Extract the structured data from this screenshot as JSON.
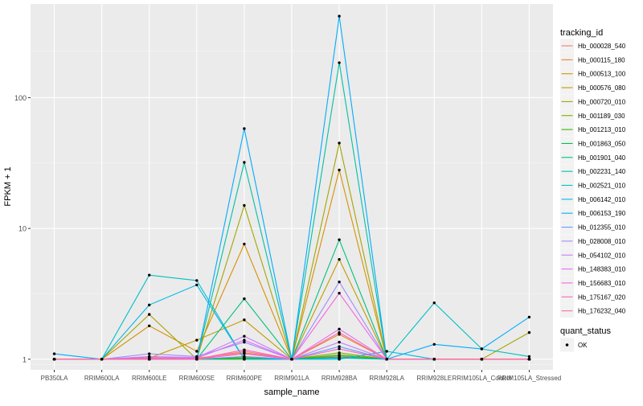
{
  "chart_data": {
    "type": "line",
    "xlabel": "sample_name",
    "ylabel": "FPKM + 1",
    "y_scale": "log10",
    "ylim": [
      0.83,
      520
    ],
    "y_ticks": [
      1,
      10,
      100
    ],
    "y_tick_labels": [
      "1",
      "10",
      "100"
    ],
    "grid": true,
    "categories": [
      "PB350LA",
      "RRIM600LA",
      "RRIM600LE",
      "RRIM600SE",
      "RRIM600PE",
      "RRIM901LA",
      "RRIM928BA",
      "RRIM928LA",
      "RRIM928LE",
      "RRIM105LA_Control",
      "RRIM105LA_Stressed"
    ],
    "legend": {
      "position": "right",
      "color_title": "tracking_id",
      "shape_title": "quant_status",
      "shape_entries": [
        "OK"
      ]
    },
    "series": [
      {
        "name": "Hb_000028_540",
        "color": "#F8766D",
        "values": [
          1.0,
          1.0,
          1.01,
          1.0,
          1.02,
          1.0,
          1.06,
          1.0,
          1.0,
          1.0,
          1.0
        ]
      },
      {
        "name": "Hb_000115_180",
        "color": "#EA8331",
        "values": [
          1.0,
          1.0,
          1.03,
          1.02,
          1.12,
          1.0,
          1.55,
          1.0,
          1.0,
          1.0,
          1.0
        ]
      },
      {
        "name": "Hb_000513_100",
        "color": "#D89000",
        "values": [
          1.0,
          1.0,
          1.8,
          1.15,
          7.6,
          1.0,
          28.0,
          1.0,
          1.0,
          1.0,
          1.0
        ]
      },
      {
        "name": "Hb_000576_080",
        "color": "#C09B00",
        "values": [
          1.0,
          1.0,
          1.02,
          1.4,
          2.0,
          1.0,
          5.8,
          1.0,
          1.0,
          1.0,
          1.0
        ]
      },
      {
        "name": "Hb_000720_010",
        "color": "#A3A500",
        "values": [
          1.0,
          1.0,
          2.2,
          1.0,
          15.0,
          1.0,
          45.0,
          1.0,
          1.0,
          1.0,
          1.6
        ]
      },
      {
        "name": "Hb_001189_030",
        "color": "#7CAE00",
        "values": [
          1.0,
          1.0,
          1.0,
          1.0,
          1.03,
          1.0,
          1.12,
          1.0,
          1.0,
          1.0,
          1.0
        ]
      },
      {
        "name": "Hb_001213_010",
        "color": "#39B600",
        "values": [
          1.0,
          1.0,
          1.0,
          1.0,
          1.02,
          1.0,
          1.08,
          1.0,
          1.0,
          1.0,
          1.0
        ]
      },
      {
        "name": "Hb_001863_050",
        "color": "#00BB4E",
        "values": [
          1.0,
          1.0,
          1.0,
          1.0,
          1.0,
          1.0,
          1.04,
          1.0,
          1.0,
          1.0,
          1.0
        ]
      },
      {
        "name": "Hb_001901_040",
        "color": "#00BF7D",
        "values": [
          1.0,
          1.0,
          1.02,
          1.0,
          2.9,
          1.0,
          8.2,
          1.0,
          1.0,
          1.0,
          1.0
        ]
      },
      {
        "name": "Hb_002231_140",
        "color": "#00C1A3",
        "values": [
          1.0,
          1.0,
          1.0,
          1.0,
          32.0,
          1.0,
          185.0,
          1.0,
          1.0,
          1.0,
          1.0
        ]
      },
      {
        "name": "Hb_002521_010",
        "color": "#00BFC4",
        "values": [
          1.0,
          1.0,
          4.4,
          4.0,
          1.0,
          1.0,
          1.02,
          1.0,
          2.7,
          1.2,
          1.05
        ]
      },
      {
        "name": "Hb_006142_010",
        "color": "#00B8E5",
        "values": [
          1.0,
          1.0,
          2.6,
          3.7,
          1.0,
          1.0,
          1.0,
          1.15,
          1.0,
          1.0,
          1.0
        ]
      },
      {
        "name": "Hb_006153_190",
        "color": "#00ACFC",
        "values": [
          1.1,
          1.0,
          1.0,
          1.0,
          58.0,
          1.0,
          420.0,
          1.0,
          1.3,
          1.2,
          2.1
        ]
      },
      {
        "name": "Hb_012355_010",
        "color": "#619CFF",
        "values": [
          1.0,
          1.0,
          1.0,
          1.0,
          1.05,
          1.0,
          1.25,
          1.0,
          1.0,
          1.0,
          1.0
        ]
      },
      {
        "name": "Hb_028008_010",
        "color": "#9F8CFF",
        "values": [
          1.0,
          1.0,
          1.1,
          1.05,
          1.35,
          1.0,
          3.9,
          1.0,
          1.0,
          1.0,
          1.0
        ]
      },
      {
        "name": "Hb_054102_010",
        "color": "#C77CFF",
        "values": [
          1.0,
          1.0,
          1.05,
          1.03,
          1.5,
          1.0,
          1.35,
          1.0,
          1.0,
          1.0,
          1.0
        ]
      },
      {
        "name": "Hb_148383_010",
        "color": "#E76BF3",
        "values": [
          1.0,
          1.0,
          1.02,
          1.02,
          1.4,
          1.0,
          1.7,
          1.0,
          1.0,
          1.0,
          1.0
        ]
      },
      {
        "name": "Hb_156683_010",
        "color": "#F863DF",
        "values": [
          1.0,
          1.0,
          1.0,
          1.0,
          1.1,
          1.0,
          3.2,
          1.0,
          1.0,
          1.0,
          1.0
        ]
      },
      {
        "name": "Hb_175167_020",
        "color": "#FF62BC",
        "values": [
          1.0,
          1.0,
          1.0,
          1.0,
          1.18,
          1.0,
          1.2,
          1.0,
          1.0,
          1.0,
          1.0
        ]
      },
      {
        "name": "Hb_176232_040",
        "color": "#FF6C91",
        "values": [
          1.0,
          1.0,
          1.0,
          1.0,
          1.15,
          1.0,
          1.6,
          1.0,
          1.0,
          1.0,
          1.0
        ]
      }
    ]
  }
}
